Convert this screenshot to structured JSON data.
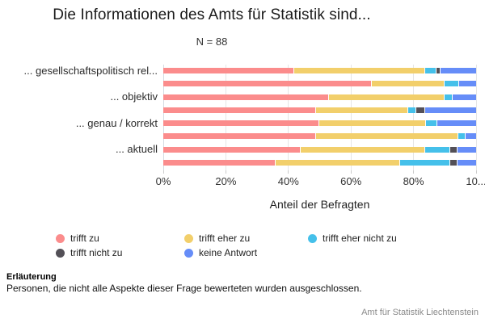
{
  "title": "Die Informationen des Amts für Statistik sind...",
  "subtitle": "N = 88",
  "chart_data": {
    "type": "bar",
    "orientation": "horizontal",
    "stacked": true,
    "sample_size_label": "N = 88",
    "title": "Die Informationen des Amts für Statistik sind...",
    "xlabel": "Anteil der Befragten",
    "xlim": [
      0,
      100
    ],
    "grid": true,
    "x_tick_values": [
      0,
      20,
      40,
      60,
      80,
      100
    ],
    "x_tick_labels": [
      "0%",
      "20%",
      "40%",
      "60%",
      "80%",
      "10..."
    ],
    "categories": [
      "... gesellschaftspolitisch rel...",
      "",
      "... objektiv",
      "",
      "... genau / korrekt",
      "",
      "... aktuell",
      ""
    ],
    "categories_note": "8 stacked bars; only every second category label is shown on the axis",
    "series": [
      {
        "name": "trifft zu",
        "color": "#FB8C8C",
        "values": [
          42,
          67,
          53,
          49,
          50,
          49,
          44,
          36
        ]
      },
      {
        "name": "trifft eher zu",
        "color": "#F2CF6B",
        "values": [
          42,
          23,
          37,
          29.5,
          34,
          45.5,
          40,
          40
        ]
      },
      {
        "name": "trifft eher nicht zu",
        "color": "#45C0EA",
        "values": [
          3.5,
          4.5,
          2.5,
          2.5,
          3.5,
          2,
          8,
          16
        ]
      },
      {
        "name": "trifft nicht zu",
        "color": "#535057",
        "values": [
          1,
          0,
          0,
          2.5,
          0,
          0,
          2,
          2
        ]
      },
      {
        "name": "keine Antwort",
        "color": "#668DF8",
        "values": [
          11.5,
          5.5,
          7.5,
          16.5,
          12.5,
          3.5,
          6,
          6
        ]
      }
    ],
    "legend_position": "bottom-left"
  },
  "legend": {
    "items": [
      {
        "label": "trifft zu",
        "color": "#FB8C8C"
      },
      {
        "label": "trifft eher zu",
        "color": "#F2CF6B"
      },
      {
        "label": "trifft eher nicht zu",
        "color": "#45C0EA"
      },
      {
        "label": "trifft nicht zu",
        "color": "#535057"
      },
      {
        "label": "keine Antwort",
        "color": "#668DF8"
      }
    ]
  },
  "footer": {
    "heading": "Erläuterung",
    "text": "Personen, die nicht alle Aspekte dieser Frage bewerteten wurden ausgeschlossen.",
    "source": "Amt für Statistik Liechtenstein"
  }
}
